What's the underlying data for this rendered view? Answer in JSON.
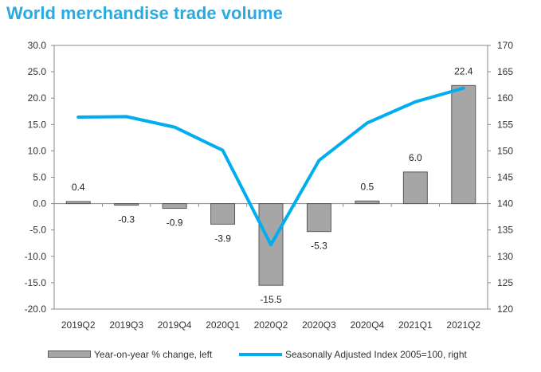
{
  "title": "World merchandise trade volume",
  "legend": {
    "bar_label": "Year-on-year % change, left",
    "line_label": "Seasonally Adjusted Index 2005=100, right"
  },
  "chart_data": {
    "type": "bar",
    "title": "World merchandise trade volume",
    "categories": [
      "2019Q2",
      "2019Q3",
      "2019Q4",
      "2020Q1",
      "2020Q2",
      "2020Q3",
      "2020Q4",
      "2021Q1",
      "2021Q2"
    ],
    "series": [
      {
        "name": "Year-on-year % change, left",
        "type": "bar",
        "axis": "left",
        "values": [
          0.4,
          -0.3,
          -0.9,
          -3.9,
          -15.5,
          -5.3,
          0.5,
          6.0,
          22.4
        ],
        "labels": [
          "0.4",
          "-0.3",
          "-0.9",
          "-3.9",
          "-15.5",
          "-5.3",
          "0.5",
          "6.0",
          "22.4"
        ]
      },
      {
        "name": "Seasonally Adjusted Index 2005=100, right",
        "type": "line",
        "axis": "right",
        "values": [
          156.4,
          156.5,
          154.5,
          150.1,
          132.2,
          148.2,
          155.3,
          159.3,
          161.9
        ]
      }
    ],
    "y_left": {
      "min": -20,
      "max": 30,
      "step": 5,
      "ticks": [
        "-20.0",
        "-15.0",
        "-10.0",
        "-5.0",
        "0.0",
        "5.0",
        "10.0",
        "15.0",
        "20.0",
        "25.0",
        "30.0"
      ]
    },
    "y_right": {
      "min": 120,
      "max": 170,
      "step": 5,
      "ticks": [
        "120",
        "125",
        "130",
        "135",
        "140",
        "145",
        "150",
        "155",
        "160",
        "165",
        "170"
      ]
    },
    "grid": false,
    "legend_position": "bottom",
    "colors": {
      "bar_fill": "#a6a6a6",
      "bar_stroke": "#595959",
      "line": "#00adef",
      "axis": "#888888",
      "title": "#29abe2"
    }
  }
}
